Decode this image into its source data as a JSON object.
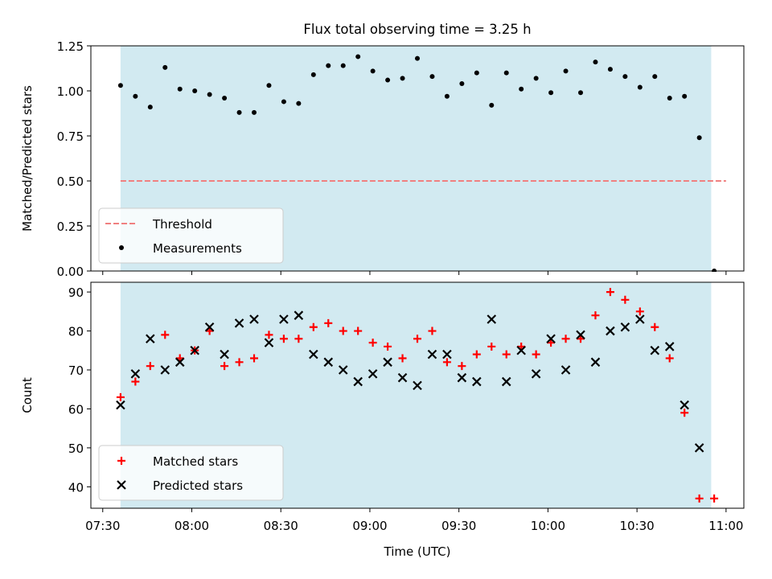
{
  "title": "Flux total observing time = 3.25 h",
  "chart_data": [
    {
      "type": "scatter",
      "ylabel": "Matched/Predicted stars",
      "xlabel": "",
      "xlim": [
        "07:26",
        "11:06"
      ],
      "ylim": [
        0,
        1.25
      ],
      "yticks": [
        "0.00",
        "0.25",
        "0.50",
        "0.75",
        "1.00",
        "1.25"
      ],
      "xticks": [
        "07:30",
        "08:00",
        "08:30",
        "09:00",
        "09:30",
        "10:00",
        "10:30",
        "11:00"
      ],
      "shaded_span": [
        "07:36",
        "10:55"
      ],
      "legend_position": "lower-left",
      "grid": false,
      "threshold": {
        "name": "Threshold",
        "value": 0.5,
        "x_range": [
          "07:36",
          "11:00"
        ],
        "color": "#f08080"
      },
      "series": [
        {
          "name": "Measurements",
          "color": "#000000",
          "x": [
            "07:36",
            "07:41",
            "07:46",
            "07:51",
            "07:56",
            "08:01",
            "08:06",
            "08:11",
            "08:16",
            "08:21",
            "08:26",
            "08:31",
            "08:36",
            "08:41",
            "08:46",
            "08:51",
            "08:56",
            "09:01",
            "09:06",
            "09:11",
            "09:16",
            "09:21",
            "09:26",
            "09:31",
            "09:36",
            "09:41",
            "09:46",
            "09:51",
            "09:56",
            "10:01",
            "10:06",
            "10:11",
            "10:16",
            "10:21",
            "10:26",
            "10:31",
            "10:36",
            "10:41",
            "10:46",
            "10:51",
            "10:56"
          ],
          "y": [
            1.03,
            0.97,
            0.91,
            1.13,
            1.01,
            1.0,
            0.98,
            0.96,
            0.88,
            0.88,
            1.03,
            0.94,
            0.93,
            1.09,
            1.14,
            1.14,
            1.19,
            1.11,
            1.06,
            1.07,
            1.18,
            1.08,
            0.97,
            1.04,
            1.1,
            0.92,
            1.1,
            1.01,
            1.07,
            0.99,
            1.11,
            0.99,
            1.16,
            1.12,
            1.08,
            1.02,
            1.08,
            0.96,
            0.97,
            0.74,
            0.0
          ]
        }
      ]
    },
    {
      "type": "scatter",
      "ylabel": "Count",
      "xlabel": "Time (UTC)",
      "xlim": [
        "07:26",
        "11:06"
      ],
      "ylim": [
        34.5,
        92.5
      ],
      "yticks": [
        "40",
        "50",
        "60",
        "70",
        "80",
        "90"
      ],
      "xticks": [
        "07:30",
        "08:00",
        "08:30",
        "09:00",
        "09:30",
        "10:00",
        "10:30",
        "11:00"
      ],
      "shaded_span": [
        "07:36",
        "10:55"
      ],
      "legend_position": "lower-left",
      "grid": false,
      "series": [
        {
          "name": "Matched stars",
          "marker": "plus",
          "color": "#ff0000",
          "x": [
            "07:36",
            "07:41",
            "07:46",
            "07:51",
            "07:56",
            "08:01",
            "08:06",
            "08:11",
            "08:16",
            "08:21",
            "08:26",
            "08:31",
            "08:36",
            "08:41",
            "08:46",
            "08:51",
            "08:56",
            "09:01",
            "09:06",
            "09:11",
            "09:16",
            "09:21",
            "09:26",
            "09:31",
            "09:36",
            "09:41",
            "09:46",
            "09:51",
            "09:56",
            "10:01",
            "10:06",
            "10:11",
            "10:16",
            "10:21",
            "10:26",
            "10:31",
            "10:36",
            "10:41",
            "10:46",
            "10:51",
            "10:56"
          ],
          "y": [
            63,
            67,
            71,
            79,
            73,
            75,
            80,
            71,
            72,
            73,
            79,
            78,
            78,
            81,
            82,
            80,
            80,
            77,
            76,
            73,
            78,
            80,
            72,
            71,
            74,
            76,
            74,
            76,
            74,
            77,
            78,
            78,
            84,
            90,
            88,
            85,
            81,
            73,
            59,
            37,
            37
          ]
        },
        {
          "name": "Predicted stars",
          "marker": "x",
          "color": "#000000",
          "x": [
            "07:36",
            "07:41",
            "07:46",
            "07:51",
            "07:56",
            "08:01",
            "08:06",
            "08:11",
            "08:16",
            "08:21",
            "08:26",
            "08:31",
            "08:36",
            "08:41",
            "08:46",
            "08:51",
            "08:56",
            "09:01",
            "09:06",
            "09:11",
            "09:16",
            "09:21",
            "09:26",
            "09:31",
            "09:36",
            "09:41",
            "09:46",
            "09:51",
            "09:56",
            "10:01",
            "10:06",
            "10:11",
            "10:16",
            "10:21",
            "10:26",
            "10:31",
            "10:36",
            "10:41",
            "10:46",
            "10:51"
          ],
          "y": [
            61,
            69,
            78,
            70,
            72,
            75,
            81,
            74,
            82,
            83,
            77,
            83,
            84,
            74,
            72,
            70,
            67,
            69,
            72,
            68,
            66,
            74,
            74,
            68,
            67,
            83,
            67,
            75,
            69,
            78,
            70,
            79,
            72,
            80,
            81,
            83,
            75,
            76,
            61,
            50
          ]
        }
      ]
    }
  ],
  "colors": {
    "shade": "#add8e6",
    "axis": "#000000"
  }
}
